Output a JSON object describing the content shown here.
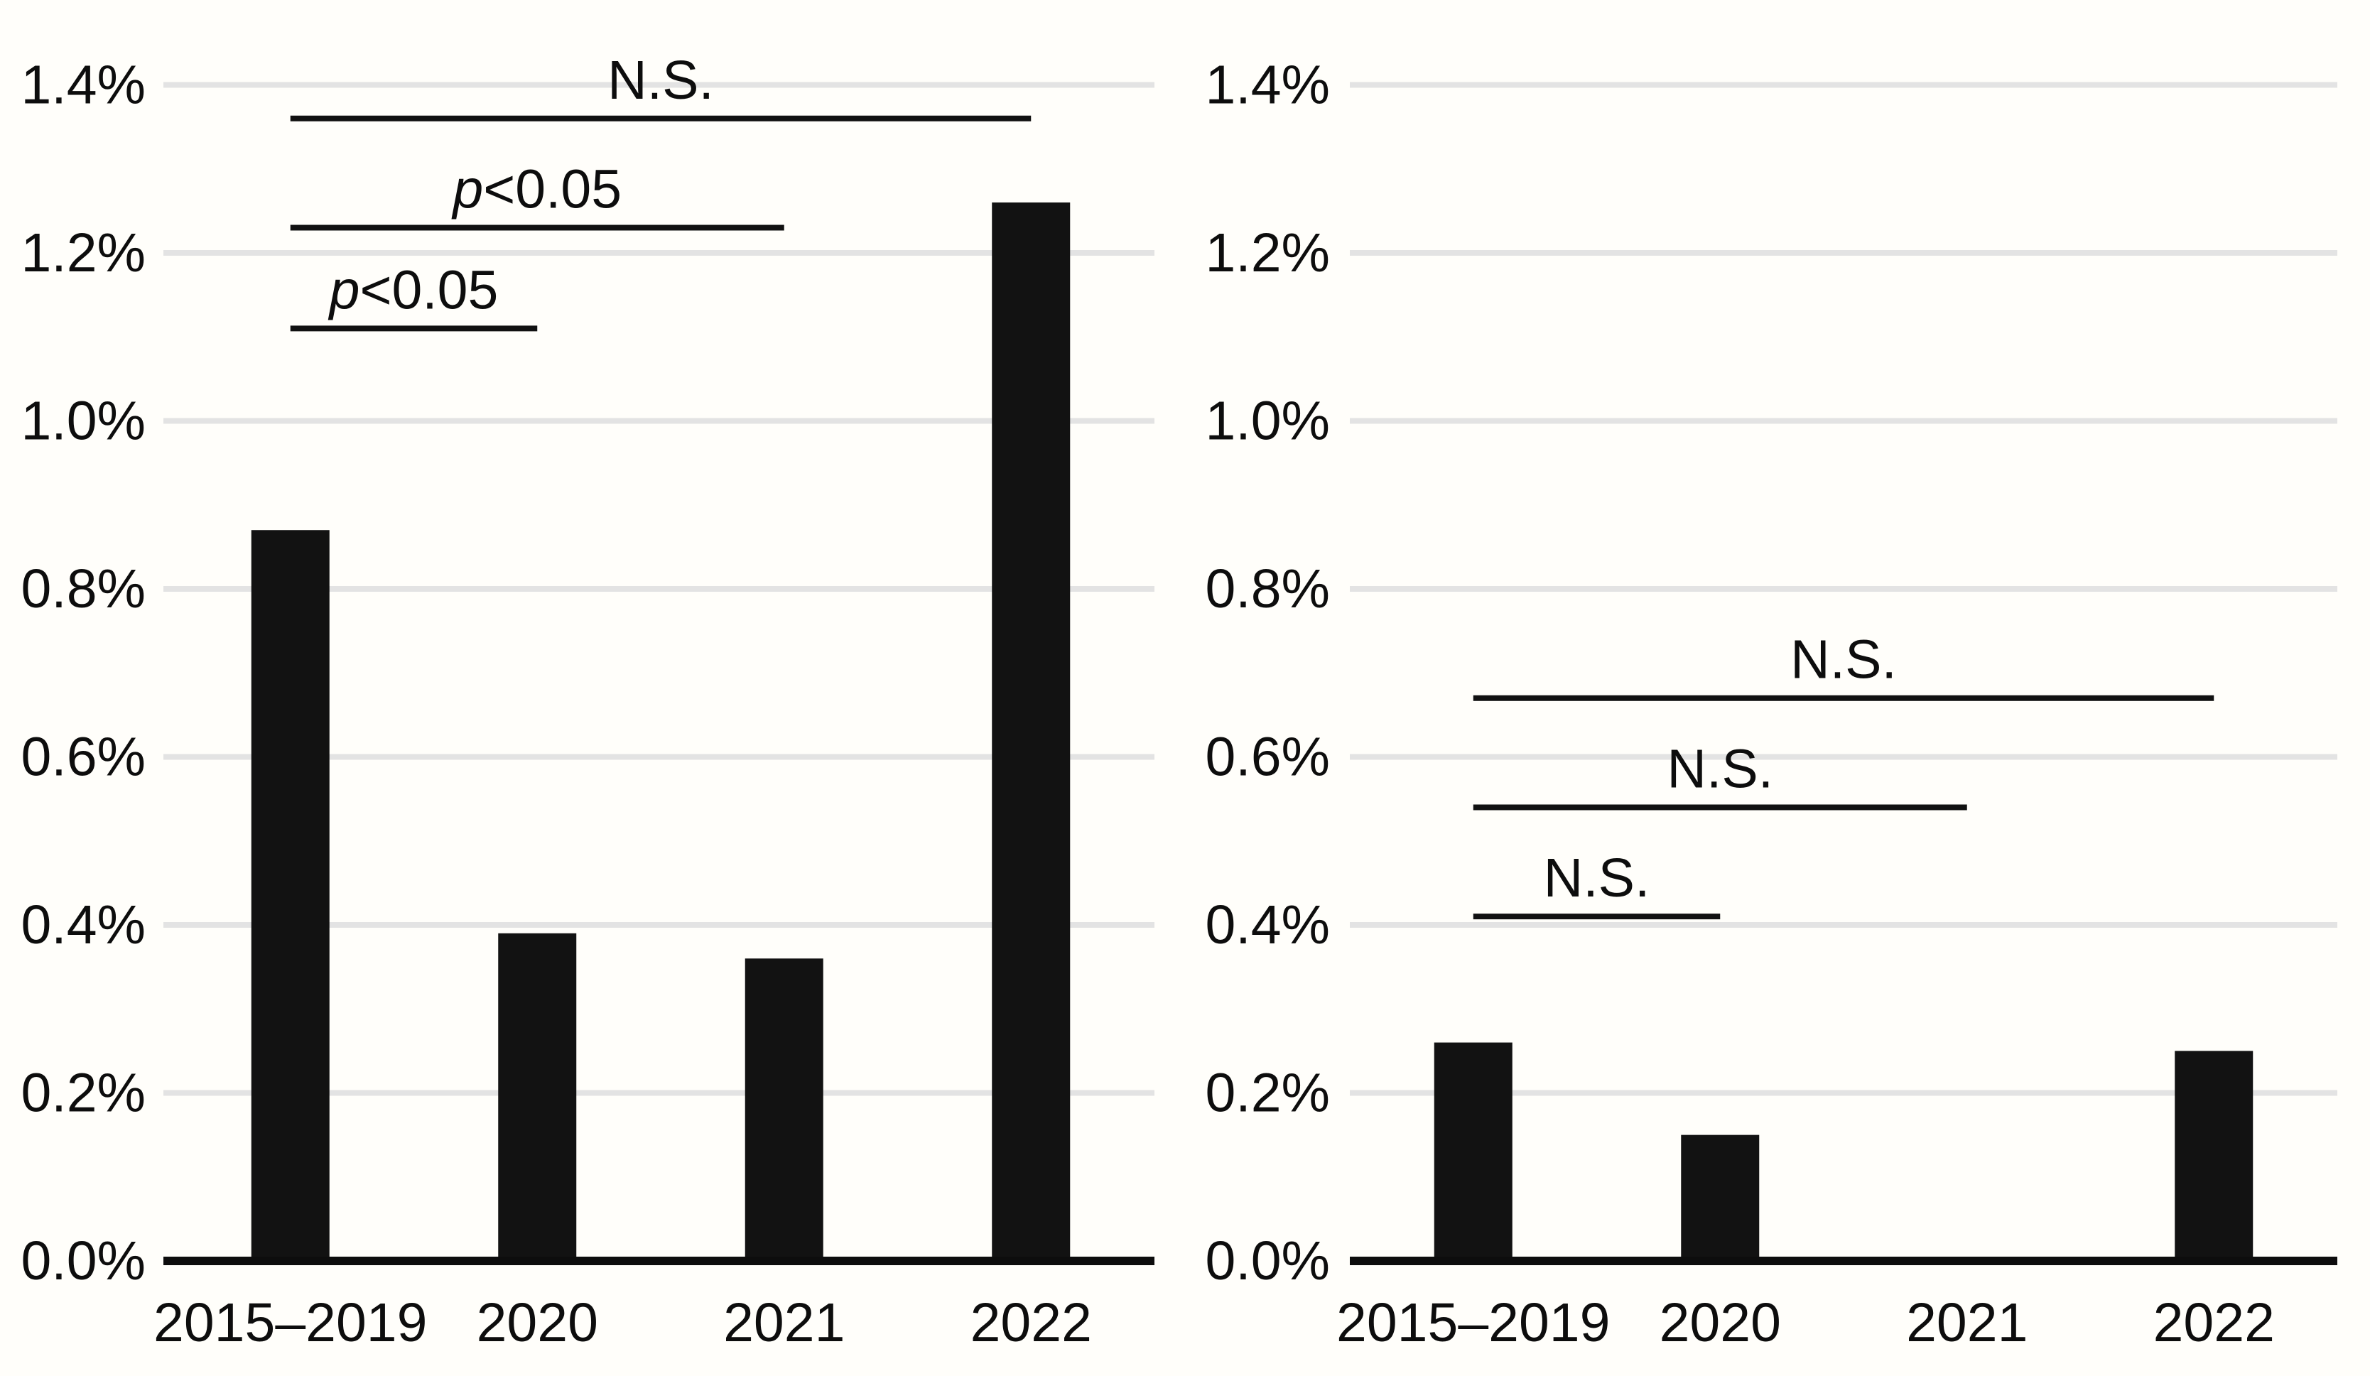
{
  "figure": {
    "kind": "two-panel bar chart with significance brackets",
    "title": "",
    "background_color": "#fffefa"
  },
  "style": {
    "bar_color": "#121212",
    "gridline_color": "#e3e3e3",
    "axis_color": "#0d0d0d",
    "text_color": "#0d0d0d",
    "sig_line_color": "#111111"
  },
  "chart_data": [
    {
      "type": "bar",
      "panel": "left",
      "title": "",
      "xlabel": "",
      "ylabel": "",
      "unit": "percent",
      "categories": [
        "2015–2019",
        "2020",
        "2021",
        "2022"
      ],
      "values": [
        0.87,
        0.39,
        0.36,
        1.26
      ],
      "ylim": [
        0,
        1.4
      ],
      "ytick_values": [
        0,
        0.2,
        0.4,
        0.6,
        0.8,
        1.0,
        1.2,
        1.4
      ],
      "ytick_labels": [
        "0.0%",
        "0.2%",
        "0.4%",
        "0.6%",
        "0.8%",
        "1.0%",
        "1.2%",
        "1.4%"
      ],
      "grid": "horizontal",
      "legend": "none",
      "significance_annotations": [
        {
          "from_index": 0,
          "to_index": 3,
          "y": 1.36,
          "label": "N.S.",
          "label_parts": [
            {
              "text": "N.S.",
              "italic": false
            }
          ]
        },
        {
          "from_index": 0,
          "to_index": 2,
          "y": 1.23,
          "label": "p<0.05",
          "label_parts": [
            {
              "text": "p",
              "italic": true
            },
            {
              "text": "<0.05",
              "italic": false
            }
          ]
        },
        {
          "from_index": 0,
          "to_index": 1,
          "y": 1.11,
          "label": "p<0.05",
          "label_parts": [
            {
              "text": "p",
              "italic": true
            },
            {
              "text": "<0.05",
              "italic": false
            }
          ]
        }
      ]
    },
    {
      "type": "bar",
      "panel": "right",
      "title": "",
      "xlabel": "",
      "ylabel": "",
      "unit": "percent",
      "categories": [
        "2015–2019",
        "2020",
        "2021",
        "2022"
      ],
      "values": [
        0.26,
        0.15,
        0,
        0.25
      ],
      "ylim": [
        0,
        1.4
      ],
      "ytick_values": [
        0,
        0.2,
        0.4,
        0.6,
        0.8,
        1.0,
        1.2,
        1.4
      ],
      "ytick_labels": [
        "0.0%",
        "0.2%",
        "0.4%",
        "0.6%",
        "0.8%",
        "1.0%",
        "1.2%",
        "1.4%"
      ],
      "grid": "horizontal",
      "legend": "none",
      "significance_annotations": [
        {
          "from_index": 0,
          "to_index": 3,
          "y": 0.67,
          "label": "N.S.",
          "label_parts": [
            {
              "text": "N.S.",
              "italic": false
            }
          ]
        },
        {
          "from_index": 0,
          "to_index": 2,
          "y": 0.54,
          "label": "N.S.",
          "label_parts": [
            {
              "text": "N.S.",
              "italic": false
            }
          ]
        },
        {
          "from_index": 0,
          "to_index": 1,
          "y": 0.41,
          "label": "N.S.",
          "label_parts": [
            {
              "text": "N.S.",
              "italic": false
            }
          ]
        }
      ]
    }
  ]
}
